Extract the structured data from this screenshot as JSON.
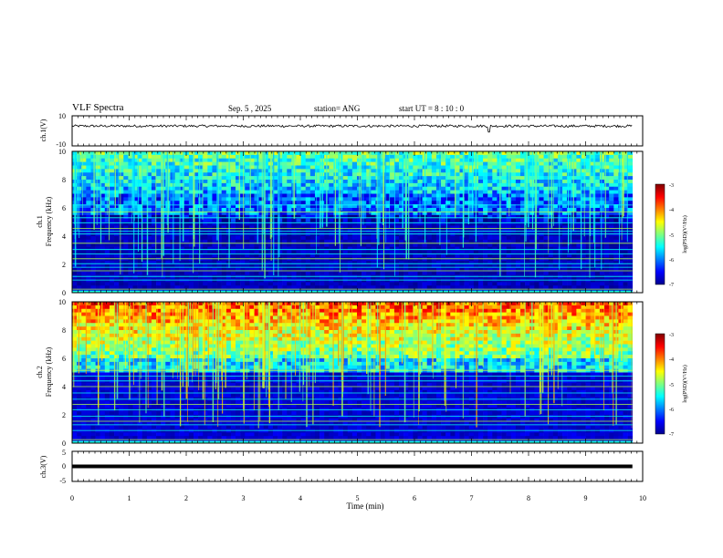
{
  "header": {
    "title": "VLF Spectra",
    "date": "Sep. 5 , 2025",
    "station": "station= ANG",
    "start": "start UT = 8 : 10 : 0"
  },
  "colors": {
    "waveform": "#000000",
    "frame": "#000000",
    "background": "#ffffff"
  },
  "chart_data": [
    {
      "type": "line",
      "id": "ch1-waveform",
      "ylabel": "ch.1(V)",
      "ylim": [
        -10,
        10
      ],
      "yticks": [
        "10",
        "-10"
      ],
      "trace": "noisy signal centered near 3 V, amplitude about ±1 V, brief spike near 7.3 min",
      "y_center": 3.2
    },
    {
      "type": "heatmap",
      "id": "ch1-spectrogram",
      "ylabel": "ch.1\nFrequency (kHz)",
      "ylim": [
        0,
        10
      ],
      "yticks": [
        "0",
        "2",
        "4",
        "6",
        "8",
        "10"
      ],
      "colorbar": {
        "label": "log(PSD)(V²/Hz)",
        "range": [
          -7,
          -3
        ],
        "ticks": [
          "-3",
          "-4",
          "-5",
          "-6",
          "-7"
        ]
      },
      "x_extent_min": 9.82,
      "steady_lines_khz": [
        0.25,
        0.9,
        1.15,
        1.55,
        1.8,
        2.05,
        2.4,
        2.75,
        3.05,
        3.5,
        4.15,
        4.35,
        4.55,
        4.95,
        5.3,
        5.7,
        6.2
      ]
    },
    {
      "type": "heatmap",
      "id": "ch2-spectrogram",
      "ylabel": "ch.2\nFrequency (kHz)",
      "ylim": [
        0,
        10
      ],
      "yticks": [
        "0",
        "2",
        "4",
        "6",
        "8",
        "10"
      ],
      "colorbar": {
        "label": "log(PSD)(V²/Hz)",
        "range": [
          -7,
          -3
        ],
        "ticks": [
          "-3",
          "-4",
          "-5",
          "-6",
          "-7"
        ]
      },
      "x_extent_min": 9.82,
      "steady_lines_khz": [
        0.25,
        0.9,
        1.3,
        1.55,
        1.9,
        2.35,
        2.75,
        3.1,
        3.55,
        4.0,
        4.4,
        4.75,
        5.15
      ]
    },
    {
      "type": "line",
      "id": "ch3-waveform",
      "ylabel": "ch.3(V)",
      "ylim": [
        -5,
        5
      ],
      "yticks": [
        "5",
        "0",
        "-5"
      ],
      "trace": "flat thick line",
      "y_value": 0
    }
  ],
  "xaxis": {
    "label": "Time (min)",
    "range": [
      0,
      10
    ],
    "ticks": [
      "0",
      "1",
      "2",
      "3",
      "4",
      "5",
      "6",
      "7",
      "8",
      "9",
      "10"
    ]
  }
}
